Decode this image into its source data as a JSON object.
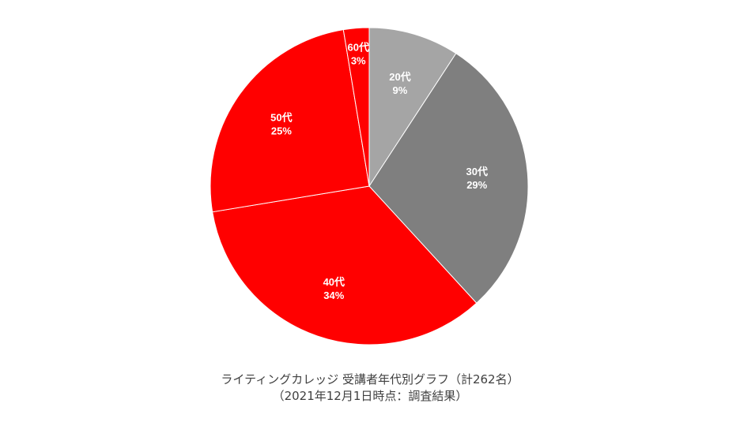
{
  "chart_data": {
    "type": "pie",
    "title": "ライティングカレッジ 受講者年代別グラフ（計262名）",
    "subtitle": "（2021年12月1日時点：調査結果）",
    "categories": [
      "20代",
      "30代",
      "40代",
      "50代",
      "60代"
    ],
    "values": [
      9.2,
      29.0,
      34.2,
      25.0,
      2.6
    ],
    "labels": [
      "9%",
      "29%",
      "34%",
      "25%",
      "3%"
    ],
    "colors": [
      "#a5a5a5",
      "#7f7f7f",
      "#ff0000",
      "#ff0000",
      "#ff0000"
    ],
    "start_angle_deg": 0,
    "direction": "clockwise",
    "total_count": 262,
    "legend": "none"
  },
  "caption": {
    "line1": "ライティングカレッジ 受講者年代別グラフ（計262名）",
    "line2": "（2021年12月1日時点：調査結果）"
  }
}
